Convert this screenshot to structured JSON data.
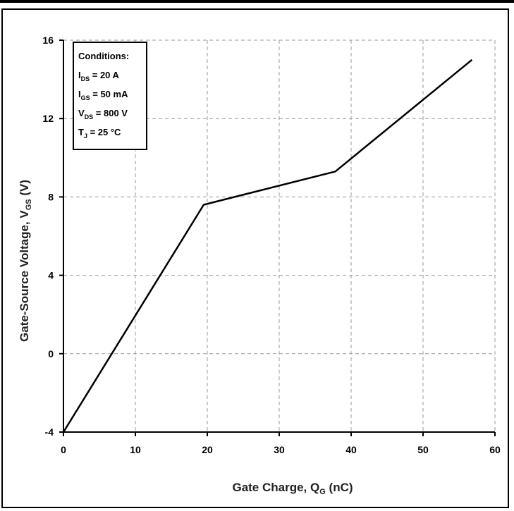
{
  "chart_data": {
    "type": "line",
    "xlabel": "Gate Charge, Q",
    "xlabel_sub": "G",
    "xlabel_unit": "(nC)",
    "ylabel": "Gate-Source Voltage, V",
    "ylabel_sub": "GS",
    "ylabel_unit": "(V)",
    "xlim": [
      0,
      60
    ],
    "ylim": [
      -4,
      16
    ],
    "xticks": [
      "0",
      "10",
      "20",
      "30",
      "40",
      "50",
      "60"
    ],
    "yticks": [
      "-4",
      "0",
      "4",
      "8",
      "12",
      "16"
    ],
    "grid": true,
    "series": [
      {
        "x": [
          0,
          19.5,
          37.8,
          56.8
        ],
        "y": [
          -4,
          7.6,
          9.3,
          15.0
        ]
      }
    ],
    "legend_box": {
      "title": "Conditions:",
      "lines": [
        {
          "main": "I",
          "sub": "DS",
          "value": " = 20 A"
        },
        {
          "main": "I",
          "sub": "GS",
          "value": " = 50 mA"
        },
        {
          "main": "V",
          "sub": "DS",
          "value": " = 800 V"
        },
        {
          "main": "T",
          "sub": "J",
          "value": " = 25 °C"
        }
      ]
    }
  }
}
